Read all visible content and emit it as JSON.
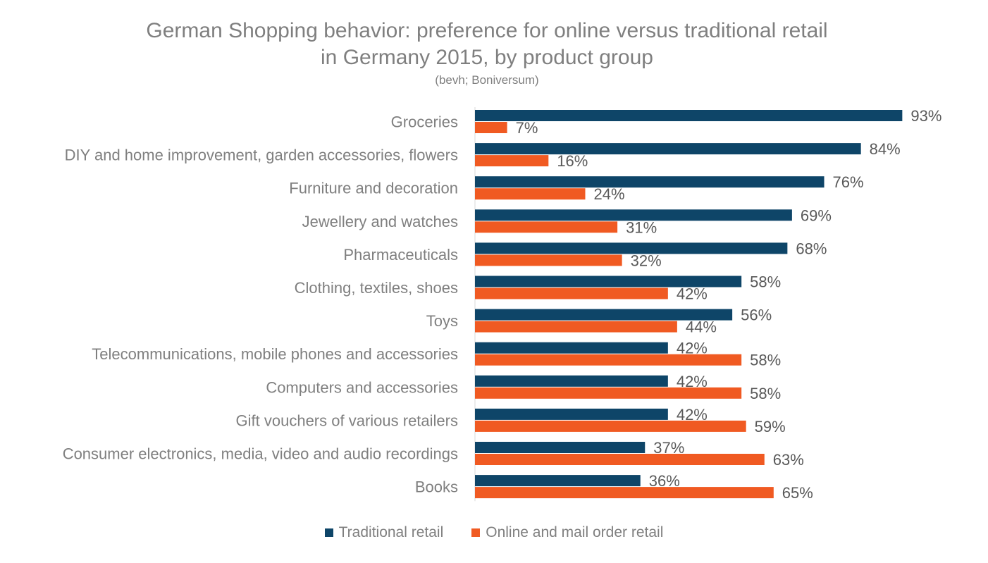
{
  "chart_data": {
    "type": "bar",
    "orientation": "horizontal",
    "title": "German Shopping behavior: preference for online versus traditional retail",
    "title_line2": "in Germany 2015, by product group",
    "subtitle": "(bevh; Boniversum)",
    "categories": [
      "Groceries",
      "DIY and home improvement, garden accessories, flowers",
      "Furniture and decoration",
      "Jewellery and watches",
      "Pharmaceuticals",
      "Clothing, textiles, shoes",
      "Toys",
      "Telecommunications, mobile phones and accessories",
      "Computers and accessories",
      "Gift vouchers of various retailers",
      "Consumer electronics, media, video and audio recordings",
      "Books"
    ],
    "series": [
      {
        "name": "Traditional retail",
        "color": "#0e4568",
        "values": [
          93,
          84,
          76,
          69,
          68,
          58,
          56,
          42,
          42,
          42,
          37,
          36
        ],
        "labels": [
          "93%",
          "84%",
          "76%",
          "69%",
          "68%",
          "58%",
          "56%",
          "42%",
          "42%",
          "42%",
          "37%",
          "36%"
        ]
      },
      {
        "name": "Online and mail order retail",
        "color": "#f05a22",
        "values": [
          7,
          16,
          24,
          31,
          32,
          42,
          44,
          58,
          58,
          59,
          63,
          65
        ],
        "labels": [
          "7%",
          "16%",
          "24%",
          "31%",
          "32%",
          "42%",
          "44%",
          "58%",
          "58%",
          "59%",
          "63%",
          "65%"
        ]
      }
    ],
    "xlim": [
      0,
      100
    ],
    "grid": false,
    "legend_position": "bottom"
  }
}
